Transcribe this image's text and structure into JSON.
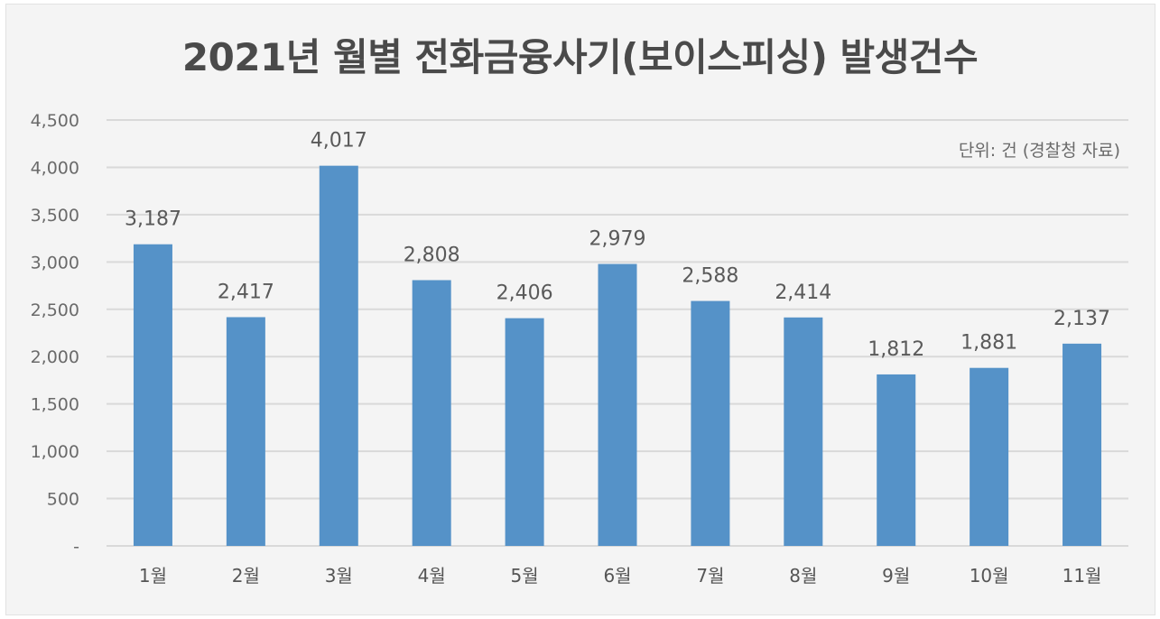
{
  "chart_data": {
    "type": "bar",
    "title": "2021년 월별 전화금융사기(보이스피싱) 발생건수",
    "source_note": "단위: 건 (경찰청 자료)",
    "categories": [
      "1월",
      "2월",
      "3월",
      "4월",
      "5월",
      "6월",
      "7월",
      "8월",
      "9월",
      "10월",
      "11월"
    ],
    "values": [
      3187,
      2417,
      4017,
      2808,
      2406,
      2979,
      2588,
      2414,
      1812,
      1881,
      2137
    ],
    "value_labels": [
      "3,187",
      "2,417",
      "4,017",
      "2,808",
      "2,406",
      "2,979",
      "2,588",
      "2,414",
      "1,812",
      "1,881",
      "2,137"
    ],
    "y_ticks": [
      0,
      500,
      1000,
      1500,
      2000,
      2500,
      3000,
      3500,
      4000,
      4500
    ],
    "y_tick_labels": [
      "-",
      "500",
      "1,000",
      "1,500",
      "2,000",
      "2,500",
      "3,000",
      "3,500",
      "4,000",
      "4,500"
    ],
    "ylim": [
      0,
      4500
    ],
    "grid": true,
    "legend": "none",
    "bar_color": "#5592c8",
    "grid_color": "#d9d9d9"
  }
}
